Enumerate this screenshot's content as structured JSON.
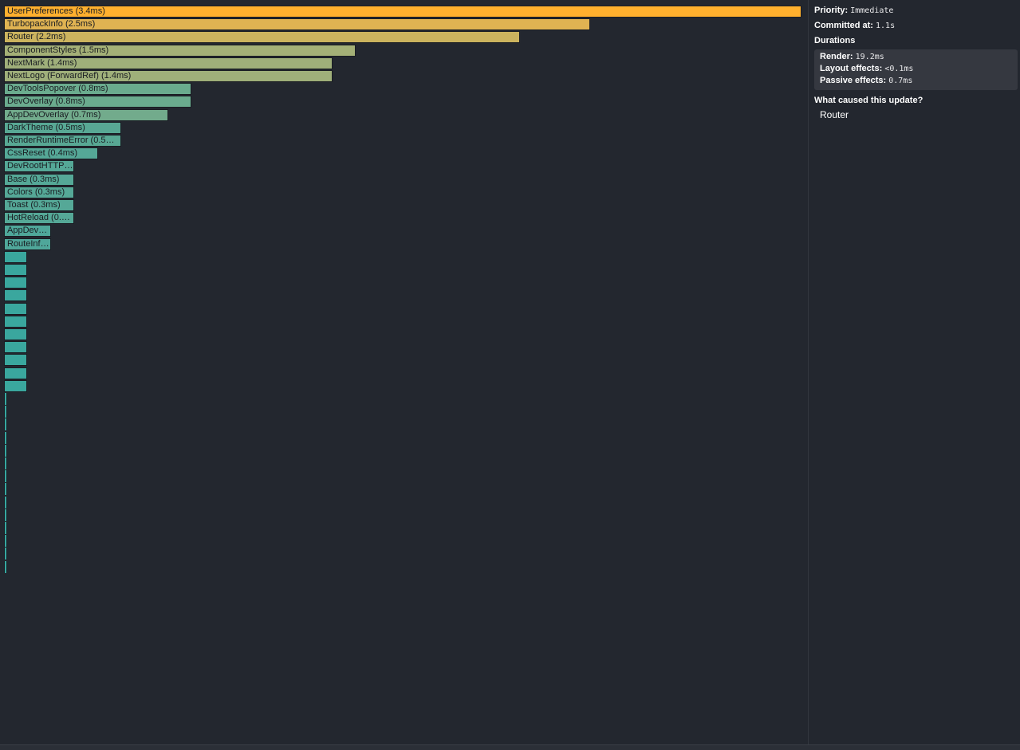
{
  "flamegraph": {
    "bars": [
      {
        "label": "UserPreferences (3.4ms)",
        "duration_ms": 3.4,
        "color": "#ffb02e"
      },
      {
        "label": "TurbopackInfo (2.5ms)",
        "duration_ms": 2.5,
        "color": "#e0b352"
      },
      {
        "label": "Router (2.2ms)",
        "duration_ms": 2.2,
        "color": "#cbb35e"
      },
      {
        "label": "ComponentStyles (1.5ms)",
        "duration_ms": 1.5,
        "color": "#a4b077"
      },
      {
        "label": "NextMark (1.4ms)",
        "duration_ms": 1.4,
        "color": "#9faf7a"
      },
      {
        "label": "NextLogo (ForwardRef) (1.4ms)",
        "duration_ms": 1.4,
        "color": "#9faf7a"
      },
      {
        "label": "DevToolsPopover (0.8ms)",
        "duration_ms": 0.8,
        "color": "#6aab8e"
      },
      {
        "label": "DevOverlay (0.8ms)",
        "duration_ms": 0.8,
        "color": "#6aab8e"
      },
      {
        "label": "AppDevOverlay (0.7ms)",
        "duration_ms": 0.7,
        "color": "#72ab8c"
      },
      {
        "label": "DarkTheme (0.5ms)",
        "duration_ms": 0.5,
        "color": "#58a894"
      },
      {
        "label": "RenderRuntimeError (0.5…",
        "duration_ms": 0.5,
        "color": "#58a894"
      },
      {
        "label": "CssReset (0.4ms)",
        "duration_ms": 0.4,
        "color": "#55a897"
      },
      {
        "label": "DevRootHTTP…",
        "duration_ms": 0.3,
        "color": "#55a897"
      },
      {
        "label": "Base (0.3ms)",
        "duration_ms": 0.3,
        "color": "#55a897"
      },
      {
        "label": "Colors (0.3ms)",
        "duration_ms": 0.3,
        "color": "#55a897"
      },
      {
        "label": "Toast (0.3ms)",
        "duration_ms": 0.3,
        "color": "#55a897"
      },
      {
        "label": "HotReload (0.…",
        "duration_ms": 0.3,
        "color": "#55a897"
      },
      {
        "label": "AppDev…",
        "duration_ms": 0.2,
        "color": "#4fa79a"
      },
      {
        "label": "RouteInf…",
        "duration_ms": 0.2,
        "color": "#4fa79a"
      },
      {
        "label": "",
        "duration_ms": 0.1,
        "color": "#3aa79e"
      },
      {
        "label": "",
        "duration_ms": 0.1,
        "color": "#3aa79e"
      },
      {
        "label": "",
        "duration_ms": 0.1,
        "color": "#3aa79e"
      },
      {
        "label": "",
        "duration_ms": 0.1,
        "color": "#3aa79e"
      },
      {
        "label": "",
        "duration_ms": 0.1,
        "color": "#3aa79e"
      },
      {
        "label": "",
        "duration_ms": 0.1,
        "color": "#3aa79e"
      },
      {
        "label": "",
        "duration_ms": 0.1,
        "color": "#3aa79e"
      },
      {
        "label": "",
        "duration_ms": 0.1,
        "color": "#3aa79e"
      },
      {
        "label": "",
        "duration_ms": 0.1,
        "color": "#3aa79e"
      },
      {
        "label": "",
        "duration_ms": 0.1,
        "color": "#3aa79e"
      },
      {
        "label": "",
        "duration_ms": 0.1,
        "color": "#3aa79e"
      },
      {
        "label": "",
        "duration_ms": 0.01,
        "color": "#37a7a0"
      },
      {
        "label": "",
        "duration_ms": 0.01,
        "color": "#37a7a0"
      },
      {
        "label": "",
        "duration_ms": 0.01,
        "color": "#37a7a0"
      },
      {
        "label": "",
        "duration_ms": 0.01,
        "color": "#37a7a0"
      },
      {
        "label": "",
        "duration_ms": 0.01,
        "color": "#37a7a0"
      },
      {
        "label": "",
        "duration_ms": 0.01,
        "color": "#37a7a0"
      },
      {
        "label": "",
        "duration_ms": 0.01,
        "color": "#37a7a0"
      },
      {
        "label": "",
        "duration_ms": 0.01,
        "color": "#37a7a0"
      },
      {
        "label": "",
        "duration_ms": 0.01,
        "color": "#37a7a0"
      },
      {
        "label": "",
        "duration_ms": 0.01,
        "color": "#37a7a0"
      },
      {
        "label": "",
        "duration_ms": 0.01,
        "color": "#37a7a0"
      },
      {
        "label": "",
        "duration_ms": 0.01,
        "color": "#37a7a0"
      },
      {
        "label": "",
        "duration_ms": 0.01,
        "color": "#37a7a0"
      },
      {
        "label": "",
        "duration_ms": 0.01,
        "color": "#37a7a0"
      }
    ]
  },
  "details": {
    "priority_label": "Priority",
    "priority_value": "Immediate",
    "committed_label": "Committed at",
    "committed_value": "1.1s",
    "durations_heading": "Durations",
    "render_label": "Render",
    "render_value": "19.2ms",
    "layout_label": "Layout effects",
    "layout_value": "<0.1ms",
    "passive_label": "Passive effects",
    "passive_value": "0.7ms",
    "cause_heading": "What caused this update?",
    "causes": [
      "Router"
    ]
  }
}
